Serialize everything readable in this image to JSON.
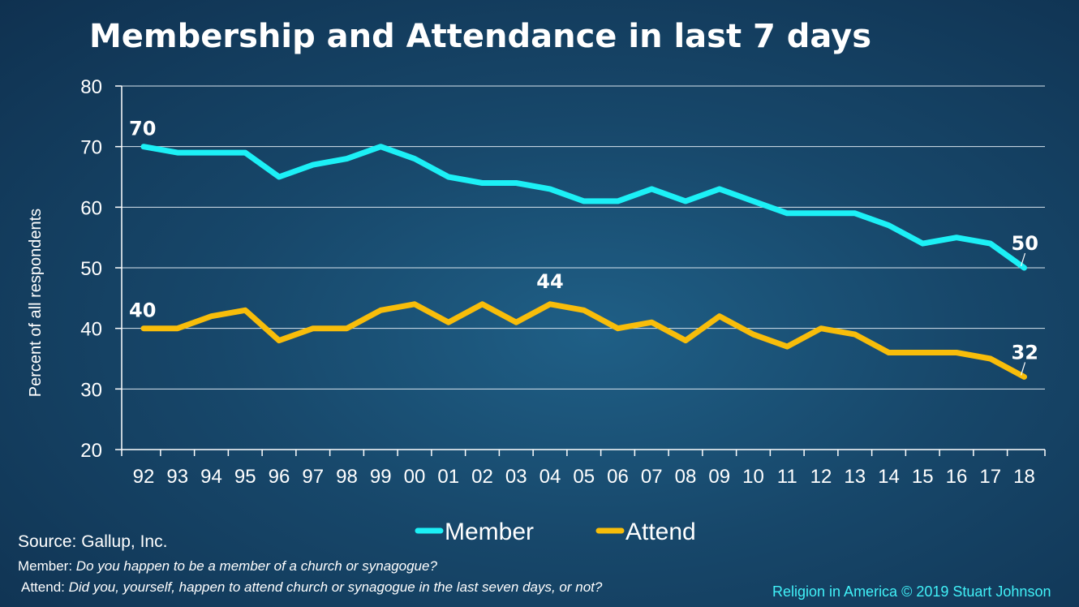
{
  "chart_data": {
    "type": "line",
    "title": "Membership and Attendance in last 7 days",
    "ylabel": "Percent of all respondents",
    "xlabel": "",
    "categories": [
      "92",
      "93",
      "94",
      "95",
      "96",
      "97",
      "98",
      "99",
      "00",
      "01",
      "02",
      "03",
      "04",
      "05",
      "06",
      "07",
      "08",
      "09",
      "10",
      "11",
      "12",
      "13",
      "14",
      "15",
      "16",
      "17",
      "18"
    ],
    "ylim": [
      20,
      80
    ],
    "yticks": [
      20,
      30,
      40,
      50,
      60,
      70,
      80
    ],
    "grid": true,
    "legend_position": "bottom",
    "series": [
      {
        "name": "Member",
        "color": "#1cf0f6",
        "values": [
          70,
          69,
          69,
          69,
          65,
          67,
          68,
          70,
          68,
          65,
          64,
          64,
          63,
          61,
          61,
          63,
          61,
          63,
          61,
          59,
          59,
          59,
          57,
          54,
          55,
          54,
          50
        ]
      },
      {
        "name": "Attend",
        "color": "#f8bd0a",
        "values": [
          40,
          40,
          42,
          43,
          38,
          40,
          40,
          43,
          44,
          41,
          44,
          41,
          44,
          43,
          40,
          41,
          38,
          42,
          39,
          37,
          40,
          39,
          36,
          36,
          36,
          35,
          32
        ]
      }
    ],
    "data_labels": [
      {
        "series": "Member",
        "index": 0,
        "text": "70"
      },
      {
        "series": "Member",
        "index": 26,
        "text": "50"
      },
      {
        "series": "Attend",
        "index": 0,
        "text": "40"
      },
      {
        "series": "Attend",
        "index": 12,
        "text": "44"
      },
      {
        "series": "Attend",
        "index": 26,
        "text": "32"
      }
    ]
  },
  "footer": {
    "source": "Source: Gallup, Inc.",
    "member_key": "Member:",
    "member_question": " Do you happen to be a member of a church or synagogue?",
    "attend_key": "Attend:",
    "attend_question": " Did you, yourself, happen to attend church or synagogue in the last seven days, or not?",
    "credit": "Religion in America © 2019 Stuart Johnson"
  }
}
